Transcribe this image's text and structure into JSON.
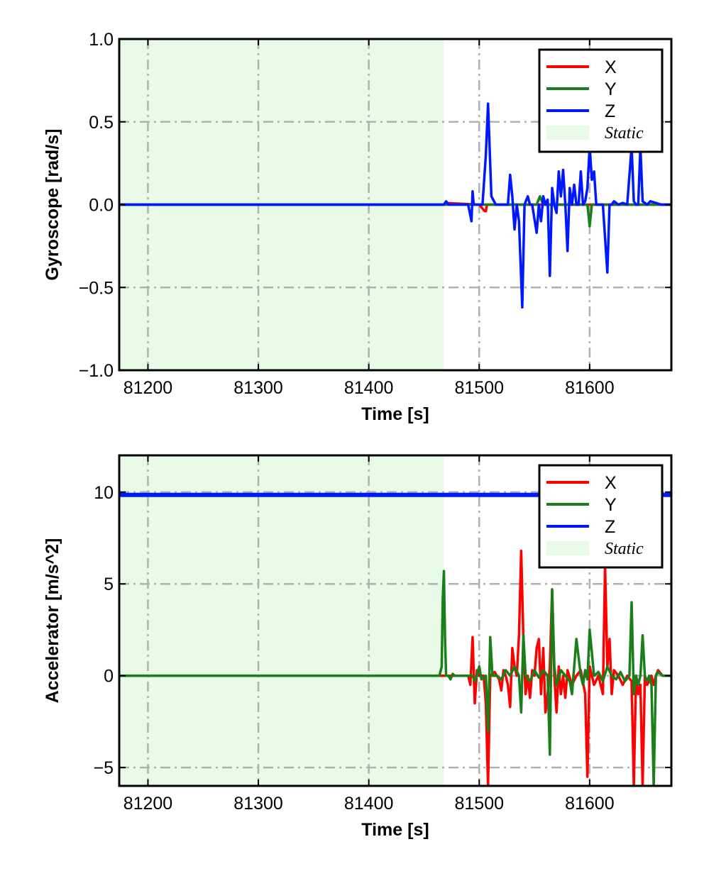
{
  "chart_data": [
    {
      "type": "line",
      "xlabel": "Time [s]",
      "ylabel": "Gyroscope [rad/s]",
      "xlim": [
        81174,
        81674
      ],
      "ylim": [
        -1.0,
        1.0
      ],
      "xticks": [
        81200,
        81300,
        81400,
        81500,
        81600
      ],
      "xtick_labels": [
        "81200",
        "81300",
        "81400",
        "81500",
        "81600"
      ],
      "yticks": [
        -1.0,
        -0.5,
        0.0,
        0.5,
        1.0
      ],
      "ytick_labels": [
        "−1.0",
        "−0.5",
        "0.0",
        "0.5",
        "1.0"
      ],
      "grid": true,
      "legend_position": "top-right",
      "static_region": {
        "label": "Static",
        "x_start": 81174,
        "x_end": 81468,
        "color": "#e8fbe6"
      },
      "series": [
        {
          "name": "X",
          "color": "#ff0000",
          "x": [
            81174,
            81468,
            81470,
            81500,
            81505,
            81506,
            81507,
            81510,
            81556,
            81600,
            81674
          ],
          "y": [
            0.0,
            0.0,
            0.01,
            0.0,
            -0.04,
            -0.04,
            0.0,
            0.0,
            0.0,
            0.0,
            0.0
          ]
        },
        {
          "name": "Y",
          "color": "#1a7f1a",
          "x": [
            81174,
            81468,
            81552,
            81555,
            81558,
            81598,
            81600,
            81602,
            81674
          ],
          "y": [
            0.0,
            0.0,
            0.0,
            0.05,
            0.0,
            0.0,
            -0.13,
            0.0,
            0.0
          ]
        },
        {
          "name": "Z",
          "color": "#0018ff",
          "x": [
            81174,
            81468,
            81470,
            81472,
            81490,
            81493,
            81494,
            81495,
            81498,
            81503,
            81506,
            81508,
            81511,
            81515,
            81526,
            81528,
            81530,
            81532,
            81534,
            81536,
            81539,
            81541,
            81544,
            81546,
            81548,
            81552,
            81554,
            81556,
            81558,
            81560,
            81562,
            81564,
            81566,
            81568,
            81570,
            81572,
            81574,
            81576,
            81578,
            81580,
            81582,
            81584,
            81586,
            81588,
            81590,
            81592,
            81594,
            81596,
            81598,
            81600,
            81602,
            81604,
            81606,
            81608,
            81610,
            81612,
            81614,
            81616,
            81618,
            81620,
            81622,
            81626,
            81630,
            81634,
            81638,
            81640,
            81642,
            81644,
            81646,
            81648,
            81650,
            81652,
            81655,
            81660,
            81665,
            81674
          ],
          "y": [
            0.0,
            0.0,
            0.02,
            0.0,
            0.0,
            -0.1,
            0.08,
            0.0,
            0.0,
            0.0,
            0.3,
            0.61,
            0.05,
            0.0,
            0.0,
            0.18,
            0.05,
            -0.15,
            0.0,
            -0.1,
            -0.62,
            0.0,
            0.05,
            0.0,
            0.0,
            -0.17,
            0.0,
            -0.1,
            0.05,
            0.0,
            0.03,
            -0.43,
            0.1,
            0.0,
            -0.05,
            0.2,
            0.05,
            0.21,
            0.0,
            -0.28,
            0.1,
            0.0,
            0.12,
            0.0,
            0.0,
            0.2,
            0.0,
            0.02,
            0.1,
            0.35,
            0.15,
            0.2,
            0.0,
            0.0,
            0.0,
            0.0,
            -0.2,
            -0.41,
            0.0,
            0.0,
            0.02,
            0.0,
            0.01,
            0.0,
            0.35,
            0.02,
            0.0,
            0.0,
            0.35,
            0.02,
            0.01,
            0.0,
            0.02,
            0.01,
            0.0,
            0.0
          ]
        }
      ]
    },
    {
      "type": "line",
      "xlabel": "Time [s]",
      "ylabel": "Accelerator [m/s^2]",
      "xlim": [
        81174,
        81674
      ],
      "ylim": [
        -6.0,
        12.0
      ],
      "xticks": [
        81200,
        81300,
        81400,
        81500,
        81600
      ],
      "xtick_labels": [
        "81200",
        "81300",
        "81400",
        "81500",
        "81600"
      ],
      "yticks": [
        -5,
        0,
        5,
        10
      ],
      "ytick_labels": [
        "−5",
        "0",
        "5",
        "10"
      ],
      "grid": true,
      "legend_position": "top-right",
      "static_region": {
        "label": "Static",
        "x_start": 81174,
        "x_end": 81468,
        "color": "#e8fbe6"
      },
      "series": [
        {
          "name": "X",
          "color": "#ff0000",
          "x": [
            81174,
            81490,
            81492,
            81494,
            81496,
            81498,
            81500,
            81504,
            81506,
            81508,
            81510,
            81514,
            81518,
            81520,
            81522,
            81524,
            81526,
            81528,
            81530,
            81532,
            81534,
            81536,
            81538,
            81540,
            81542,
            81544,
            81546,
            81548,
            81550,
            81552,
            81554,
            81556,
            81558,
            81560,
            81562,
            81564,
            81566,
            81568,
            81570,
            81572,
            81574,
            81576,
            81578,
            81580,
            81584,
            81588,
            81592,
            81596,
            81598,
            81600,
            81604,
            81608,
            81612,
            81614,
            81616,
            81618,
            81620,
            81622,
            81626,
            81630,
            81634,
            81638,
            81640,
            81642,
            81644,
            81646,
            81648,
            81650,
            81652,
            81654,
            81656,
            81658,
            81660,
            81662,
            81666,
            81674
          ],
          "y": [
            0.0,
            0.0,
            -0.5,
            2.1,
            -1.5,
            0.3,
            0.0,
            0.0,
            -1.5,
            -6.0,
            0.0,
            0.2,
            -0.2,
            -0.8,
            0.3,
            0.0,
            -0.5,
            -1.7,
            1.5,
            0.5,
            0.0,
            2.2,
            6.8,
            2.0,
            -1.0,
            0.0,
            -1.2,
            0.3,
            0.0,
            1.5,
            2.0,
            -1.0,
            1.5,
            -2.0,
            -1.0,
            0.5,
            4.7,
            0.0,
            -2.0,
            0.5,
            -1.0,
            0.0,
            -1.2,
            0.3,
            -0.5,
            0.0,
            0.3,
            -1.0,
            -5.5,
            0.5,
            -0.5,
            0.0,
            -1.0,
            6.0,
            0.5,
            2.0,
            -1.0,
            0.3,
            0.0,
            -0.5,
            0.0,
            -0.3,
            -6.0,
            0.0,
            -1.0,
            -0.5,
            -6.0,
            0.0,
            -0.5,
            -0.3,
            0.0,
            -0.5,
            0.0,
            0.3,
            0.0,
            0.0
          ]
        },
        {
          "name": "Y",
          "color": "#1a7f1a",
          "x": [
            81174,
            81464,
            81466,
            81467,
            81468,
            81469,
            81470,
            81472,
            81474,
            81476,
            81478,
            81490,
            81494,
            81496,
            81498,
            81500,
            81502,
            81506,
            81508,
            81510,
            81512,
            81516,
            81520,
            81524,
            81528,
            81532,
            81536,
            81538,
            81540,
            81542,
            81546,
            81550,
            81554,
            81558,
            81562,
            81564,
            81566,
            81568,
            81570,
            81574,
            81578,
            81582,
            81584,
            81588,
            81592,
            81594,
            81596,
            81598,
            81600,
            81604,
            81608,
            81612,
            81616,
            81620,
            81624,
            81628,
            81632,
            81636,
            81638,
            81640,
            81642,
            81644,
            81646,
            81648,
            81650,
            81652,
            81654,
            81656,
            81658,
            81660,
            81662,
            81666,
            81674
          ],
          "y": [
            0.0,
            0.0,
            0.5,
            4.2,
            5.7,
            2.2,
            0.0,
            0.0,
            -0.2,
            0.1,
            0.0,
            0.0,
            0.0,
            -0.3,
            0.0,
            0.5,
            -0.2,
            0.0,
            -3.0,
            2.1,
            0.0,
            0.0,
            -0.2,
            0.3,
            0.0,
            0.5,
            0.0,
            -2.0,
            2.2,
            0.0,
            -0.3,
            0.3,
            -0.1,
            0.3,
            0.0,
            -4.3,
            4.7,
            0.5,
            -0.5,
            0.3,
            0.0,
            -0.3,
            -1.0,
            2.0,
            0.0,
            -0.5,
            0.3,
            -0.2,
            2.5,
            0.0,
            0.2,
            -0.3,
            0.5,
            0.0,
            -0.2,
            0.2,
            -0.3,
            0.0,
            4.0,
            -1.0,
            0.0,
            -0.5,
            0.0,
            2.2,
            0.0,
            -0.3,
            0.0,
            -0.5,
            -6.0,
            0.0,
            0.2,
            0.0,
            0.0
          ]
        },
        {
          "name": "Z",
          "color": "#0018ff",
          "x": [
            81174,
            81674
          ],
          "y": [
            9.85,
            9.85
          ]
        }
      ]
    }
  ]
}
